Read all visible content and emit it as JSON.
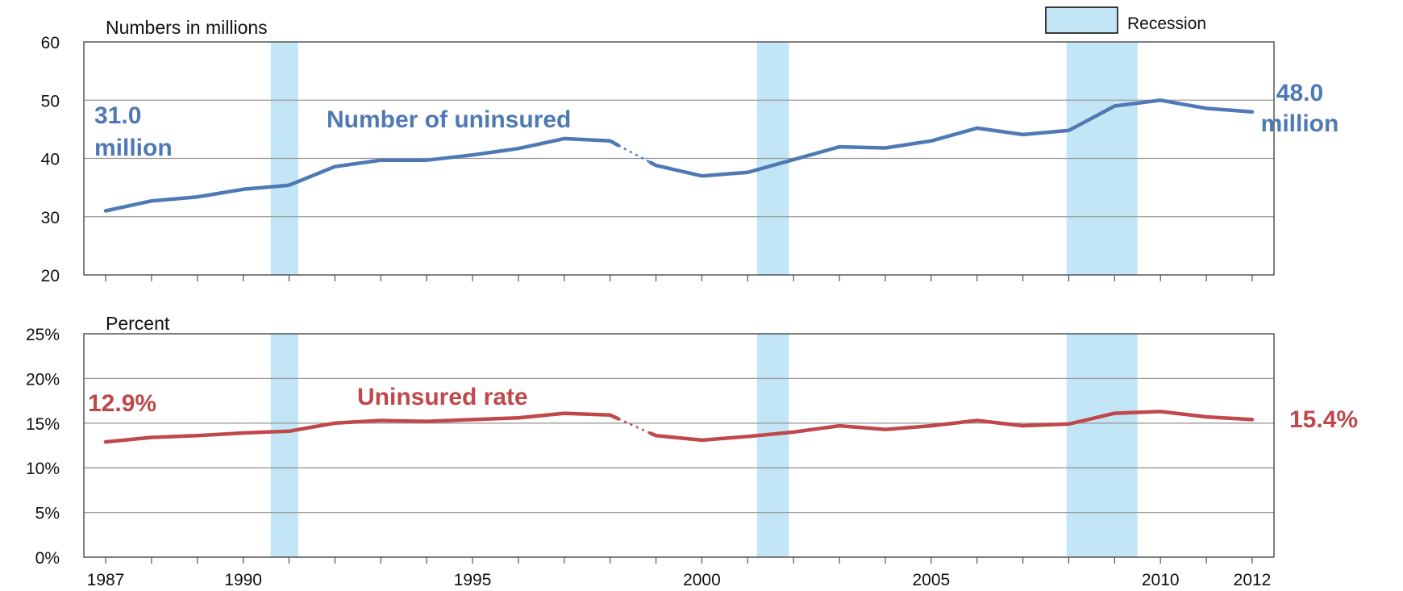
{
  "chart_data": [
    {
      "type": "line",
      "panel_label": "Numbers in millions",
      "x": [
        1987,
        1988,
        1989,
        1990,
        1991,
        1992,
        1993,
        1994,
        1995,
        1996,
        1997,
        1998,
        1999,
        2000,
        2001,
        2002,
        2003,
        2004,
        2005,
        2006,
        2007,
        2008,
        2009,
        2010,
        2011,
        2012
      ],
      "series": [
        {
          "name": "Number of uninsured",
          "color": "#4f79b5",
          "values": [
            31.0,
            32.7,
            33.4,
            34.7,
            35.4,
            38.6,
            39.7,
            39.7,
            40.6,
            41.7,
            43.4,
            43.0,
            38.8,
            37.0,
            37.6,
            39.8,
            42.0,
            41.8,
            43.0,
            45.2,
            44.1,
            44.8,
            49.0,
            50.0,
            48.6,
            48.0
          ],
          "gap_note": "dotted segment between 1998 and 1999"
        }
      ],
      "ylim": [
        20,
        60
      ],
      "yticks": [
        "20",
        "30",
        "40",
        "50",
        "60"
      ],
      "xtick_labels": [],
      "annotations": [
        {
          "text": "31.0\nmillion",
          "color": "#4f79b5"
        },
        {
          "text": "Number of uninsured",
          "color": "#4f79b5"
        },
        {
          "text": "48.0\nmillion",
          "color": "#4f79b5"
        }
      ],
      "recessions": [
        [
          1990.6,
          1991.2
        ],
        [
          2001.2,
          2001.9
        ],
        [
          2007.95,
          2009.5
        ]
      ],
      "recession_color": "#c3e6f7",
      "grid": "horizontal"
    },
    {
      "type": "line",
      "panel_label": "Percent",
      "x": [
        1987,
        1988,
        1989,
        1990,
        1991,
        1992,
        1993,
        1994,
        1995,
        1996,
        1997,
        1998,
        1999,
        2000,
        2001,
        2002,
        2003,
        2004,
        2005,
        2006,
        2007,
        2008,
        2009,
        2010,
        2011,
        2012
      ],
      "series": [
        {
          "name": "Uninsured rate",
          "color": "#c0474b",
          "values": [
            12.9,
            13.4,
            13.6,
            13.9,
            14.1,
            15.0,
            15.3,
            15.2,
            15.4,
            15.6,
            16.1,
            15.9,
            13.6,
            13.1,
            13.5,
            14.0,
            14.7,
            14.3,
            14.7,
            15.3,
            14.7,
            14.9,
            16.1,
            16.3,
            15.7,
            15.4
          ],
          "gap_note": "dotted segment between 1998 and 1999"
        }
      ],
      "ylim": [
        0,
        25
      ],
      "yticks": [
        "0%",
        "5%",
        "10%",
        "15%",
        "20%",
        "25%"
      ],
      "xtick_labels": [
        {
          "x": 1987,
          "label": "1987"
        },
        {
          "x": 1990,
          "label": "1990"
        },
        {
          "x": 1995,
          "label": "1995"
        },
        {
          "x": 2000,
          "label": "2000"
        },
        {
          "x": 2005,
          "label": "2005"
        },
        {
          "x": 2010,
          "label": "2010"
        },
        {
          "x": 2012,
          "label": "2012"
        }
      ],
      "annotations": [
        {
          "text": "12.9%",
          "color": "#c0474b"
        },
        {
          "text": "Uninsured rate",
          "color": "#c0474b"
        },
        {
          "text": "15.4%",
          "color": "#c0474b"
        }
      ],
      "recessions": [
        [
          1990.6,
          1991.2
        ],
        [
          2001.2,
          2001.9
        ],
        [
          2007.95,
          2009.5
        ]
      ],
      "recession_color": "#c3e6f7",
      "grid": "horizontal"
    }
  ],
  "legend": {
    "label": "Recession",
    "color": "#c3e6f7",
    "placement": "top-right"
  }
}
